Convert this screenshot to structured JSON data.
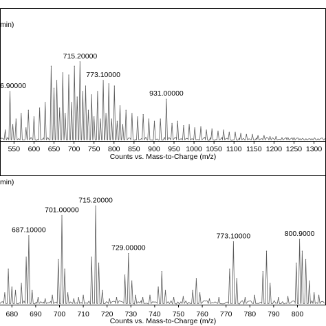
{
  "chart_data": [
    {
      "type": "line",
      "title_fragment": "min)",
      "xlabel": "Counts vs. Mass-to-Charge (m/z)",
      "xlim": [
        515,
        1330
      ],
      "xticks": [
        "550",
        "600",
        "650",
        "700",
        "750",
        "800",
        "850",
        "900",
        "950",
        "1000",
        "1050",
        "1100",
        "1150",
        "1200",
        "1250",
        "1300"
      ],
      "peak_labels": [
        {
          "text": "6.90000",
          "x": 540,
          "y": 0.45
        },
        {
          "text": "715.20000",
          "x": 715.2,
          "y": 0.72
        },
        {
          "text": "773.10000",
          "x": 773.1,
          "y": 0.55
        },
        {
          "text": "931.00000",
          "x": 931.0,
          "y": 0.38
        }
      ],
      "peaks": [
        {
          "x": 528,
          "y": 0.1
        },
        {
          "x": 540,
          "y": 0.45
        },
        {
          "x": 547,
          "y": 0.15
        },
        {
          "x": 555,
          "y": 0.2
        },
        {
          "x": 568,
          "y": 0.25
        },
        {
          "x": 580,
          "y": 0.12
        },
        {
          "x": 586,
          "y": 0.28
        },
        {
          "x": 600,
          "y": 0.22
        },
        {
          "x": 614,
          "y": 0.3
        },
        {
          "x": 628,
          "y": 0.35
        },
        {
          "x": 643,
          "y": 0.68
        },
        {
          "x": 650,
          "y": 0.48
        },
        {
          "x": 657,
          "y": 0.55
        },
        {
          "x": 664,
          "y": 0.3
        },
        {
          "x": 672,
          "y": 0.62
        },
        {
          "x": 678,
          "y": 0.25
        },
        {
          "x": 687,
          "y": 0.6
        },
        {
          "x": 694,
          "y": 0.35
        },
        {
          "x": 701,
          "y": 0.68
        },
        {
          "x": 708,
          "y": 0.4
        },
        {
          "x": 715,
          "y": 0.72
        },
        {
          "x": 722,
          "y": 0.45
        },
        {
          "x": 729,
          "y": 0.5
        },
        {
          "x": 736,
          "y": 0.28
        },
        {
          "x": 744,
          "y": 0.42
        },
        {
          "x": 750,
          "y": 0.22
        },
        {
          "x": 759,
          "y": 0.45
        },
        {
          "x": 766,
          "y": 0.2
        },
        {
          "x": 773,
          "y": 0.55
        },
        {
          "x": 780,
          "y": 0.25
        },
        {
          "x": 787,
          "y": 0.52
        },
        {
          "x": 794,
          "y": 0.2
        },
        {
          "x": 801,
          "y": 0.5
        },
        {
          "x": 808,
          "y": 0.18
        },
        {
          "x": 815,
          "y": 0.32
        },
        {
          "x": 822,
          "y": 0.15
        },
        {
          "x": 830,
          "y": 0.28
        },
        {
          "x": 845,
          "y": 0.25
        },
        {
          "x": 859,
          "y": 0.22
        },
        {
          "x": 873,
          "y": 0.24
        },
        {
          "x": 887,
          "y": 0.2
        },
        {
          "x": 901,
          "y": 0.18
        },
        {
          "x": 916,
          "y": 0.2
        },
        {
          "x": 931,
          "y": 0.38
        },
        {
          "x": 945,
          "y": 0.16
        },
        {
          "x": 959,
          "y": 0.18
        },
        {
          "x": 974,
          "y": 0.14
        },
        {
          "x": 988,
          "y": 0.15
        },
        {
          "x": 1002,
          "y": 0.12
        },
        {
          "x": 1017,
          "y": 0.13
        },
        {
          "x": 1031,
          "y": 0.1
        },
        {
          "x": 1045,
          "y": 0.11
        },
        {
          "x": 1060,
          "y": 0.09
        },
        {
          "x": 1074,
          "y": 0.1
        },
        {
          "x": 1088,
          "y": 0.08
        },
        {
          "x": 1103,
          "y": 0.08
        },
        {
          "x": 1117,
          "y": 0.07
        },
        {
          "x": 1131,
          "y": 0.06
        },
        {
          "x": 1146,
          "y": 0.06
        },
        {
          "x": 1160,
          "y": 0.05
        },
        {
          "x": 1175,
          "y": 0.05
        },
        {
          "x": 1190,
          "y": 0.04
        },
        {
          "x": 1205,
          "y": 0.04
        },
        {
          "x": 1220,
          "y": 0.03
        },
        {
          "x": 1235,
          "y": 0.03
        },
        {
          "x": 1250,
          "y": 0.03
        },
        {
          "x": 1265,
          "y": 0.02
        },
        {
          "x": 1280,
          "y": 0.02
        },
        {
          "x": 1295,
          "y": 0.02
        },
        {
          "x": 1310,
          "y": 0.02
        }
      ]
    },
    {
      "type": "line",
      "title_fragment": "min)",
      "xlabel": "Counts vs. Mass-to-Charge (m/z)",
      "xlim": [
        675,
        812
      ],
      "xticks": [
        "680",
        "690",
        "700",
        "710",
        "720",
        "730",
        "740",
        "750",
        "760",
        "770",
        "780",
        "790",
        "800"
      ],
      "peak_labels": [
        {
          "text": "687.10000",
          "x": 687.1,
          "y": 0.58
        },
        {
          "text": "701.00000",
          "x": 701.0,
          "y": 0.75
        },
        {
          "text": "715.20000",
          "x": 715.2,
          "y": 0.83
        },
        {
          "text": "729.00000",
          "x": 729.0,
          "y": 0.43
        },
        {
          "text": "773.10000",
          "x": 773.1,
          "y": 0.53
        },
        {
          "text": "800.9000",
          "x": 800.9,
          "y": 0.55
        }
      ],
      "peaks": [
        {
          "x": 677,
          "y": 0.1
        },
        {
          "x": 678.5,
          "y": 0.3
        },
        {
          "x": 680,
          "y": 0.15
        },
        {
          "x": 681.5,
          "y": 0.12
        },
        {
          "x": 684,
          "y": 0.18
        },
        {
          "x": 686,
          "y": 0.4
        },
        {
          "x": 687.1,
          "y": 0.58
        },
        {
          "x": 688.5,
          "y": 0.12
        },
        {
          "x": 691,
          "y": 0.06
        },
        {
          "x": 694,
          "y": 0.05
        },
        {
          "x": 697,
          "y": 0.08
        },
        {
          "x": 699.5,
          "y": 0.38
        },
        {
          "x": 701,
          "y": 0.75
        },
        {
          "x": 702.2,
          "y": 0.3
        },
        {
          "x": 703.5,
          "y": 0.1
        },
        {
          "x": 706,
          "y": 0.05
        },
        {
          "x": 708,
          "y": 0.06
        },
        {
          "x": 710,
          "y": 0.08
        },
        {
          "x": 713.5,
          "y": 0.4
        },
        {
          "x": 715.2,
          "y": 0.83
        },
        {
          "x": 716.5,
          "y": 0.35
        },
        {
          "x": 718,
          "y": 0.12
        },
        {
          "x": 721,
          "y": 0.05
        },
        {
          "x": 724,
          "y": 0.06
        },
        {
          "x": 727.5,
          "y": 0.25
        },
        {
          "x": 729,
          "y": 0.43
        },
        {
          "x": 730.4,
          "y": 0.2
        },
        {
          "x": 732,
          "y": 0.08
        },
        {
          "x": 735,
          "y": 0.06
        },
        {
          "x": 738,
          "y": 0.08
        },
        {
          "x": 741.5,
          "y": 0.15
        },
        {
          "x": 743,
          "y": 0.28
        },
        {
          "x": 744.5,
          "y": 0.12
        },
        {
          "x": 748,
          "y": 0.06
        },
        {
          "x": 752,
          "y": 0.07
        },
        {
          "x": 756,
          "y": 0.12
        },
        {
          "x": 757.5,
          "y": 0.22
        },
        {
          "x": 759,
          "y": 0.1
        },
        {
          "x": 763,
          "y": 0.05
        },
        {
          "x": 767,
          "y": 0.06
        },
        {
          "x": 771.5,
          "y": 0.3
        },
        {
          "x": 773.1,
          "y": 0.53
        },
        {
          "x": 774.5,
          "y": 0.22
        },
        {
          "x": 778,
          "y": 0.06
        },
        {
          "x": 782,
          "y": 0.08
        },
        {
          "x": 785.5,
          "y": 0.28
        },
        {
          "x": 787,
          "y": 0.45
        },
        {
          "x": 788.5,
          "y": 0.18
        },
        {
          "x": 792,
          "y": 0.06
        },
        {
          "x": 796,
          "y": 0.07
        },
        {
          "x": 799.5,
          "y": 0.35
        },
        {
          "x": 800.9,
          "y": 0.55
        },
        {
          "x": 802,
          "y": 0.45
        },
        {
          "x": 803.5,
          "y": 0.38
        },
        {
          "x": 805,
          "y": 0.2
        },
        {
          "x": 807,
          "y": 0.1
        },
        {
          "x": 809,
          "y": 0.08
        }
      ]
    }
  ]
}
